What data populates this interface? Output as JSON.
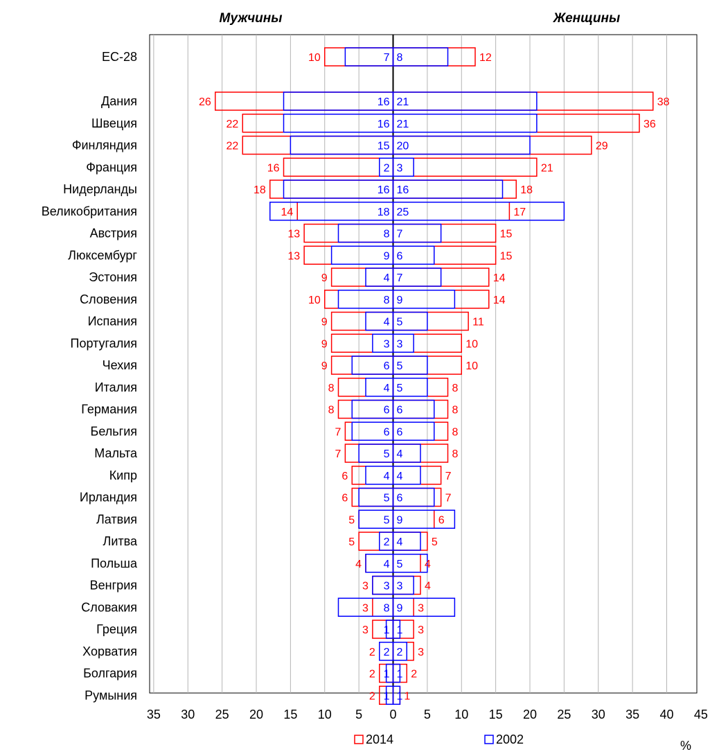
{
  "chart_data": {
    "type": "bar",
    "orientation": "horizontal-butterfly",
    "headers": {
      "left": "Мужчины",
      "right": "Женщины"
    },
    "unit": "%",
    "categories": [
      "ЕС-28",
      "Дания",
      "Швеция",
      "Финляндия",
      "Франция",
      "Нидерланды",
      "Великобритания",
      "Австрия",
      "Люксембург",
      "Эстония",
      "Словения",
      "Испания",
      "Португалия",
      "Чехия",
      "Италия",
      "Германия",
      "Бельгия",
      "Мальта",
      "Кипр",
      "Ирландия",
      "Латвия",
      "Литва",
      "Польша",
      "Венгрия",
      "Словакия",
      "Греция",
      "Хорватия",
      "Болгария",
      "Румыния"
    ],
    "series": [
      {
        "name": "2014",
        "color": "#ff0000",
        "men": [
          10,
          26,
          22,
          22,
          16,
          18,
          14,
          13,
          13,
          9,
          10,
          9,
          9,
          9,
          8,
          8,
          7,
          7,
          6,
          6,
          5,
          5,
          4,
          3,
          3,
          3,
          2,
          2,
          2
        ],
        "women": [
          12,
          38,
          36,
          29,
          21,
          18,
          17,
          15,
          15,
          14,
          14,
          11,
          10,
          10,
          8,
          8,
          8,
          8,
          7,
          7,
          6,
          5,
          4,
          4,
          3,
          3,
          3,
          2,
          1
        ]
      },
      {
        "name": "2002",
        "color": "#0000ff",
        "men": [
          7,
          16,
          16,
          15,
          2,
          16,
          18,
          8,
          9,
          4,
          8,
          4,
          3,
          6,
          4,
          6,
          6,
          5,
          4,
          5,
          5,
          2,
          4,
          3,
          8,
          1,
          2,
          1,
          1
        ],
        "women": [
          8,
          21,
          21,
          20,
          3,
          16,
          25,
          7,
          6,
          7,
          9,
          5,
          3,
          5,
          5,
          6,
          6,
          4,
          4,
          6,
          9,
          4,
          5,
          3,
          9,
          1,
          2,
          1,
          1
        ]
      }
    ],
    "xticks_left": [
      "35",
      "30",
      "25",
      "20",
      "15",
      "10",
      "5",
      "0"
    ],
    "xticks_right": [
      "5",
      "10",
      "15",
      "20",
      "25",
      "30",
      "35",
      "40",
      "45"
    ],
    "xlim_men": [
      0,
      35
    ],
    "xlim_women": [
      0,
      45
    ],
    "grid": true,
    "legend_position": "bottom"
  }
}
